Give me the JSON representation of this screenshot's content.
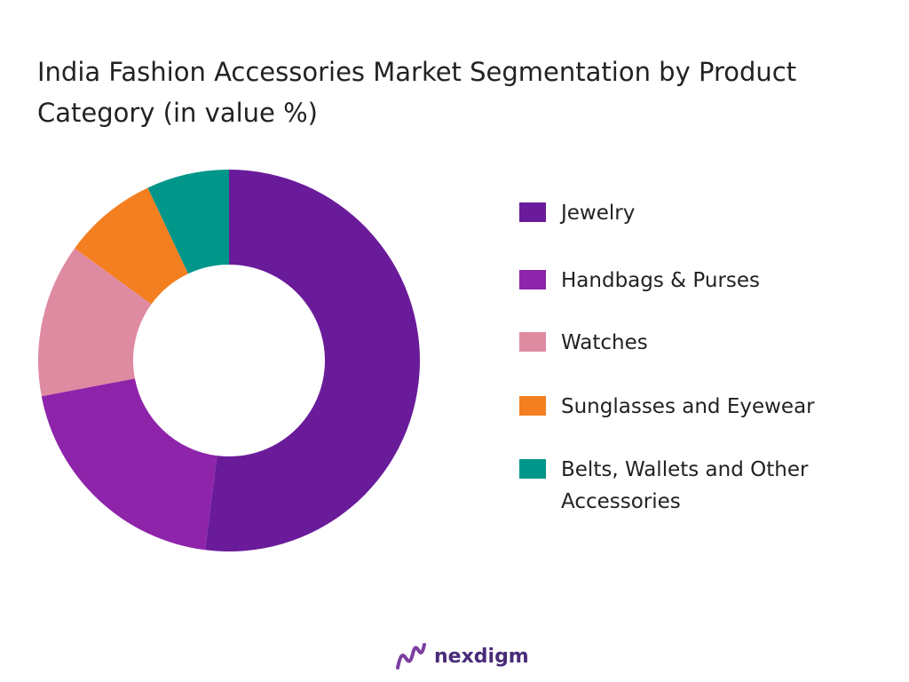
{
  "chart_data": {
    "type": "donut",
    "title": "India Fashion Accessories Market Segmentation by Product Category (in value %)",
    "categories": [
      "Jewelry",
      "Handbags & Purses",
      "Watches",
      "Sunglasses and Eyewear",
      "Belts, Wallets and Other Accessories"
    ],
    "values": [
      52,
      20,
      13,
      8,
      7
    ],
    "colors": [
      "#6a1b9a",
      "#8e24aa",
      "#de8aa0",
      "#f47f20",
      "#00968a"
    ]
  },
  "logo": "nexdigm"
}
